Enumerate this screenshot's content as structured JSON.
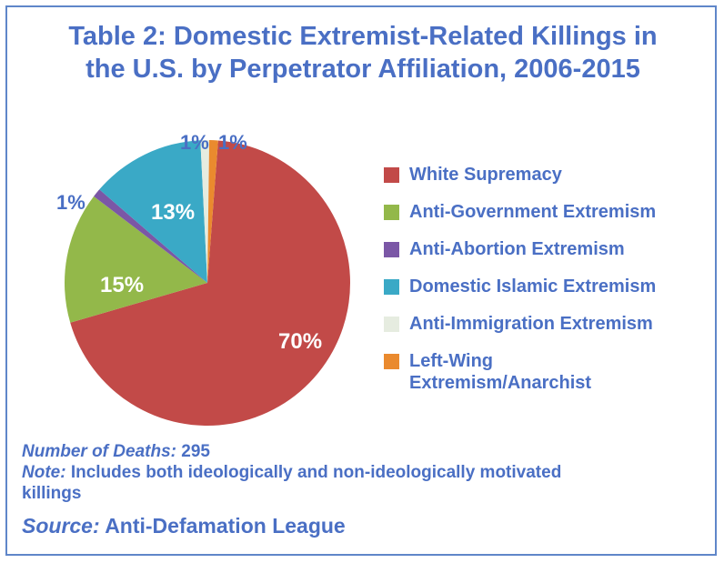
{
  "title_lines": [
    "Table 2: Domestic Extremist-Related Killings in",
    "the U.S. by Perpetrator Affiliation, 2006-2015"
  ],
  "chart_data": {
    "type": "pie",
    "title": "Table 2: Domestic Extremist-Related Killings in the U.S. by Perpetrator Affiliation, 2006-2015",
    "slices": [
      {
        "name": "White Supremacy",
        "value": 70,
        "label": "70%",
        "color": "#c24a48"
      },
      {
        "name": "Anti-Government Extremism",
        "value": 15,
        "label": "15%",
        "color": "#93b84a"
      },
      {
        "name": "Anti-Abortion Extremism",
        "value": 1,
        "label": "1%",
        "color": "#7b57a6"
      },
      {
        "name": "Domestic Islamic Extremism",
        "value": 13,
        "label": "13%",
        "color": "#3aa9c6"
      },
      {
        "name": "Anti-Immigration Extremism",
        "value": 1,
        "label": "1%",
        "color": "#e6ece0"
      },
      {
        "name": "Left-Wing Extremism/Anarchist",
        "value": 1,
        "label": "1%",
        "color": "#ea8a2e"
      }
    ],
    "legend_placement": "right"
  },
  "legend_lines": {
    "left_wing_line1": "Left-Wing",
    "left_wing_line2": "Extremism/Anarchist"
  },
  "footer": {
    "deaths_label": "Number of Deaths:",
    "deaths_value": "295",
    "note_label": "Note:",
    "note_line1": "Includes both ideologically and non-ideologically motivated",
    "note_line2": "killings",
    "source_label": "Source:",
    "source_value": "Anti-Defamation League"
  },
  "colors": {
    "accent": "#4a6fc4",
    "border": "#5f86c9"
  }
}
